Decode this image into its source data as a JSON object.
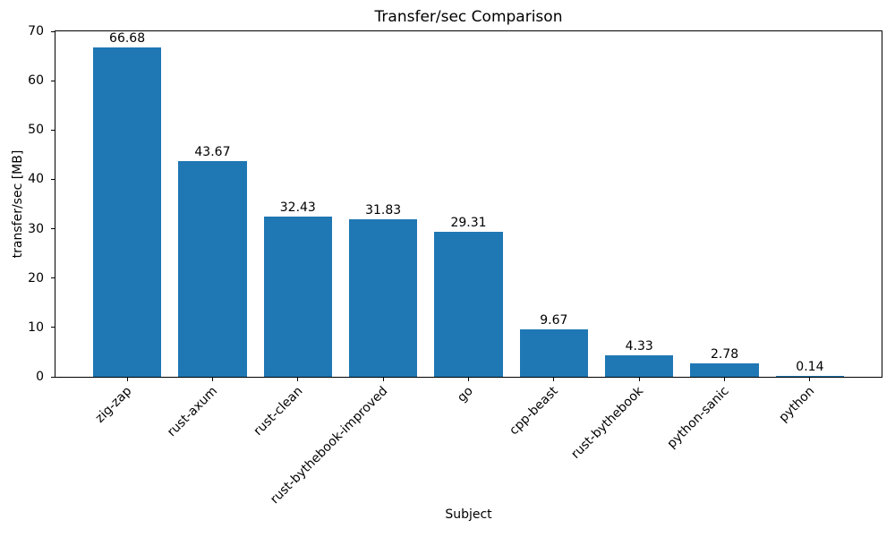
{
  "chart_data": {
    "type": "bar",
    "title": "Transfer/sec Comparison",
    "xlabel": "Subject",
    "ylabel": "transfer/sec [MB]",
    "categories": [
      "zig-zap",
      "rust-axum",
      "rust-clean",
      "rust-bythebook-improved",
      "go",
      "cpp-beast",
      "rust-bythebook",
      "python-sanic",
      "python"
    ],
    "values": [
      66.68,
      43.67,
      32.43,
      31.83,
      29.31,
      9.67,
      4.33,
      2.78,
      0.14
    ],
    "value_labels": [
      "66.68",
      "43.67",
      "32.43",
      "31.83",
      "29.31",
      "9.67",
      "4.33",
      "2.78",
      "0.14"
    ],
    "ylim": [
      0,
      70
    ],
    "yticks": [
      0,
      10,
      20,
      30,
      40,
      50,
      60,
      70
    ],
    "ytick_labels": [
      "0",
      "10",
      "20",
      "30",
      "40",
      "50",
      "60",
      "70"
    ],
    "bar_color": "#1f77b4",
    "grid": false,
    "legend": null,
    "background_color": "#ffffff"
  }
}
